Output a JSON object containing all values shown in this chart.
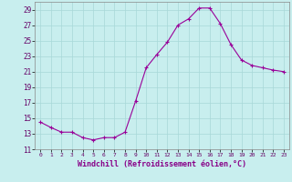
{
  "x": [
    0,
    1,
    2,
    3,
    4,
    5,
    6,
    7,
    8,
    9,
    10,
    11,
    12,
    13,
    14,
    15,
    16,
    17,
    18,
    19,
    20,
    21,
    22,
    23
  ],
  "y": [
    14.5,
    13.8,
    13.2,
    13.2,
    12.5,
    12.2,
    12.5,
    12.5,
    13.2,
    17.2,
    21.5,
    23.2,
    24.8,
    27.0,
    27.8,
    29.2,
    29.2,
    27.2,
    24.5,
    22.5,
    21.8,
    21.5,
    21.2,
    21.0
  ],
  "line_color": "#990099",
  "marker": "+",
  "bg_color": "#c8eeee",
  "grid_color": "#a8d8d8",
  "xlabel": "Windchill (Refroidissement éolien,°C)",
  "ylim": [
    11,
    30
  ],
  "yticks": [
    11,
    13,
    15,
    17,
    19,
    21,
    23,
    25,
    27,
    29
  ],
  "xticks": [
    0,
    1,
    2,
    3,
    4,
    5,
    6,
    7,
    8,
    9,
    10,
    11,
    12,
    13,
    14,
    15,
    16,
    17,
    18,
    19,
    20,
    21,
    22,
    23
  ]
}
